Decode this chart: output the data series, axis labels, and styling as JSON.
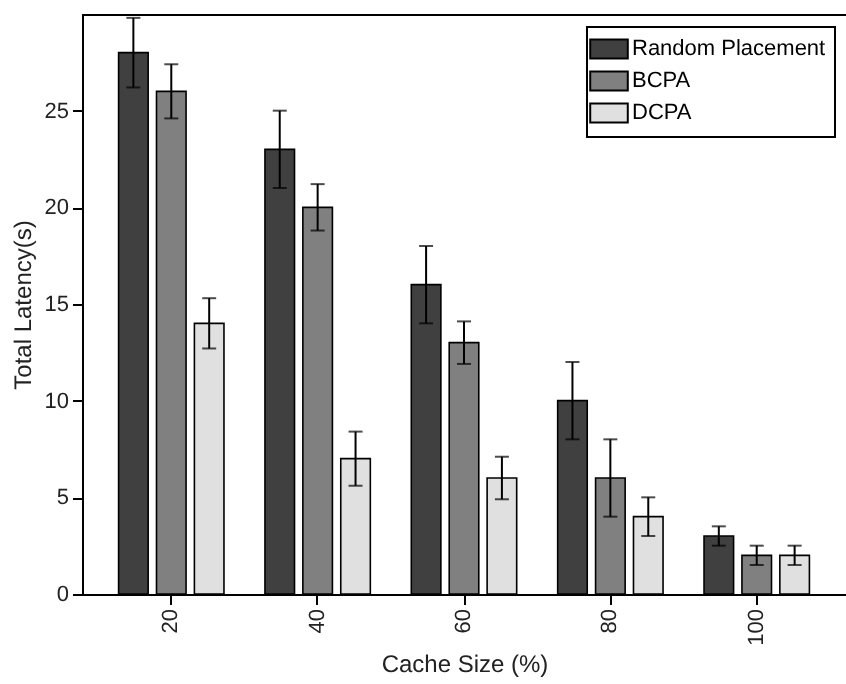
{
  "chart_data": {
    "type": "bar",
    "xlabel": "Cache Size (%)",
    "ylabel": "Total Latency(s)",
    "categories": [
      "20",
      "40",
      "60",
      "80",
      "100"
    ],
    "series": [
      {
        "name": "Random Placement",
        "color": "#404040",
        "values": [
          28,
          23,
          16,
          10,
          3
        ],
        "errors": [
          1.8,
          2,
          2,
          2,
          0.5
        ]
      },
      {
        "name": "BCPA",
        "color": "#808080",
        "values": [
          26,
          20,
          13,
          6,
          2
        ],
        "errors": [
          1.4,
          1.2,
          1.1,
          2,
          0.5
        ]
      },
      {
        "name": "DCPA",
        "color": "#e0e0e0",
        "values": [
          14,
          7,
          6,
          4,
          2
        ],
        "errors": [
          1.3,
          1.4,
          1.1,
          1,
          0.5
        ]
      }
    ],
    "ylim": [
      0,
      30
    ],
    "yticks": [
      0,
      5,
      10,
      15,
      20,
      25
    ],
    "grid": false,
    "legend": "top right"
  }
}
